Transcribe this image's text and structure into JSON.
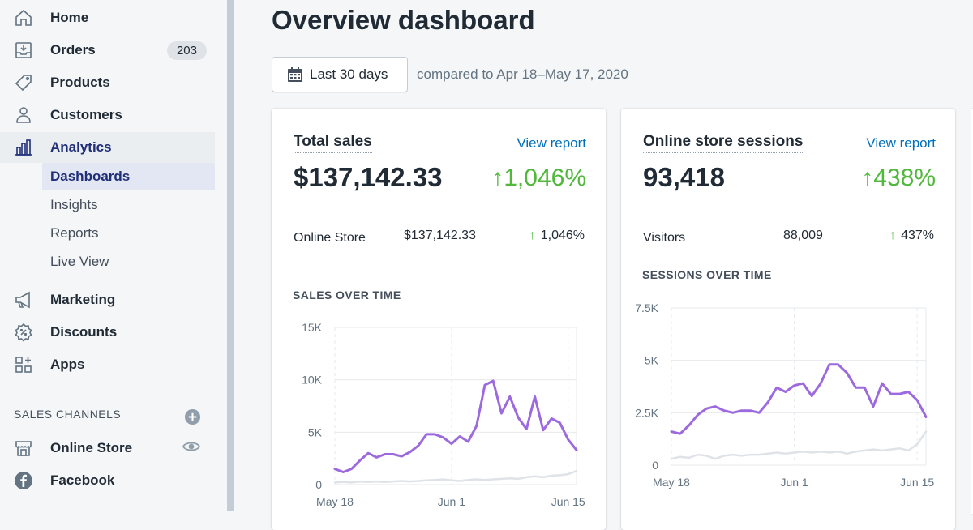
{
  "sidebar": {
    "items": [
      {
        "label": "Home",
        "icon": "home-icon"
      },
      {
        "label": "Orders",
        "icon": "orders-icon",
        "badge": "203"
      },
      {
        "label": "Products",
        "icon": "tag-icon"
      },
      {
        "label": "Customers",
        "icon": "person-icon"
      },
      {
        "label": "Analytics",
        "icon": "bar-chart-icon"
      },
      {
        "label": "Marketing",
        "icon": "megaphone-icon"
      },
      {
        "label": "Discounts",
        "icon": "discount-icon"
      },
      {
        "label": "Apps",
        "icon": "apps-icon"
      }
    ],
    "analytics_sub": [
      "Dashboards",
      "Insights",
      "Reports",
      "Live View"
    ],
    "sales_channels_header": "SALES CHANNELS",
    "channels": [
      {
        "label": "Online Store",
        "icon": "storefront-icon"
      },
      {
        "label": "Facebook",
        "icon": "facebook-icon"
      }
    ]
  },
  "main": {
    "title": "Overview dashboard",
    "date_range": "Last 30 days",
    "compare_text": "compared to Apr 18–May 17, 2020"
  },
  "cards": [
    {
      "title": "Total sales",
      "link": "View report",
      "value": "$137,142.33",
      "change": "↑1,046%",
      "breakdown": {
        "label": "Online Store",
        "value": "$137,142.33",
        "change": "1,046%"
      },
      "chart_title": "SALES OVER TIME"
    },
    {
      "title": "Online store sessions",
      "link": "View report",
      "value": "93,418",
      "change": "↑438%",
      "breakdown": {
        "label": "Visitors",
        "value": "88,009",
        "change": "437%"
      },
      "chart_title": "SESSIONS OVER TIME"
    }
  ],
  "colors": {
    "accent": "#9c6ade",
    "previous": "#dfe3e8",
    "positive": "#50b83c",
    "link": "#006fbb"
  },
  "chart_data": [
    {
      "type": "line",
      "title": "SALES OVER TIME",
      "y_ticks": [
        "0",
        "5K",
        "10K",
        "15K"
      ],
      "ylim": [
        0,
        15000
      ],
      "x_ticks": [
        "May 18",
        "Jun 1",
        "Jun 15"
      ],
      "x": [
        "May 18",
        "May 19",
        "May 20",
        "May 21",
        "May 22",
        "May 23",
        "May 24",
        "May 25",
        "May 26",
        "May 27",
        "May 28",
        "May 29",
        "May 30",
        "May 31",
        "Jun 1",
        "Jun 2",
        "Jun 3",
        "Jun 4",
        "Jun 5",
        "Jun 6",
        "Jun 7",
        "Jun 8",
        "Jun 9",
        "Jun 10",
        "Jun 11",
        "Jun 12",
        "Jun 13",
        "Jun 14",
        "Jun 15",
        "Jun 16"
      ],
      "series": [
        {
          "values": [
            1500,
            1200,
            1500,
            2300,
            3000,
            2600,
            2900,
            2900,
            2700,
            3100,
            3700,
            4800,
            4800,
            4500,
            3900,
            4600,
            4100,
            5600,
            9500,
            9900,
            6800,
            8400,
            6400,
            5300,
            8400,
            5200,
            6300,
            5900,
            4300,
            3300
          ]
        },
        {
          "values": [
            200,
            250,
            200,
            300,
            250,
            300,
            250,
            300,
            350,
            300,
            350,
            400,
            450,
            500,
            400,
            350,
            450,
            500,
            450,
            500,
            550,
            600,
            550,
            700,
            800,
            700,
            850,
            900,
            1000,
            1300
          ]
        }
      ]
    },
    {
      "type": "line",
      "title": "SESSIONS OVER TIME",
      "y_ticks": [
        "0",
        "2.5K",
        "5K",
        "7.5K"
      ],
      "ylim": [
        0,
        7500
      ],
      "x_ticks": [
        "May 18",
        "Jun 1",
        "Jun 15"
      ],
      "x": [
        "May 18",
        "May 19",
        "May 20",
        "May 21",
        "May 22",
        "May 23",
        "May 24",
        "May 25",
        "May 26",
        "May 27",
        "May 28",
        "May 29",
        "May 30",
        "May 31",
        "Jun 1",
        "Jun 2",
        "Jun 3",
        "Jun 4",
        "Jun 5",
        "Jun 6",
        "Jun 7",
        "Jun 8",
        "Jun 9",
        "Jun 10",
        "Jun 11",
        "Jun 12",
        "Jun 13",
        "Jun 14",
        "Jun 15",
        "Jun 16"
      ],
      "series": [
        {
          "values": [
            1600,
            1500,
            1900,
            2400,
            2700,
            2800,
            2600,
            2500,
            2600,
            2600,
            2500,
            3000,
            3700,
            3500,
            3800,
            3900,
            3300,
            3900,
            4800,
            4800,
            4400,
            3700,
            3700,
            2800,
            3900,
            3400,
            3400,
            3500,
            3100,
            2300
          ]
        },
        {
          "values": [
            300,
            400,
            350,
            500,
            450,
            300,
            450,
            500,
            450,
            500,
            500,
            550,
            600,
            550,
            600,
            650,
            600,
            650,
            600,
            650,
            550,
            650,
            700,
            750,
            700,
            750,
            800,
            700,
            1000,
            1600
          ]
        }
      ]
    }
  ]
}
